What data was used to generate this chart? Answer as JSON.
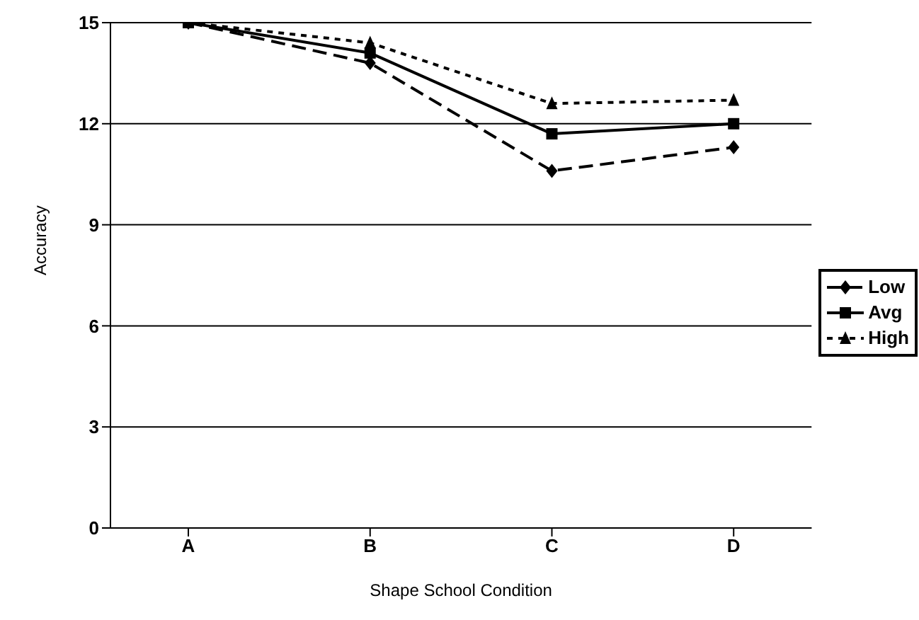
{
  "chart_data": {
    "type": "line",
    "xlabel": "Shape School Condition",
    "ylabel": "Accuracy",
    "categories": [
      "A",
      "B",
      "C",
      "D"
    ],
    "series": [
      {
        "name": "Low",
        "color": "#000000",
        "values": [
          15,
          13.8,
          10.6,
          11.3
        ],
        "marker": "diamond",
        "line_style": "dashed"
      },
      {
        "name": "Avg",
        "color": "#000000",
        "values": [
          15,
          14.1,
          11.7,
          12.0
        ],
        "marker": "square",
        "line_style": "solid"
      },
      {
        "name": "High",
        "color": "#000000",
        "values": [
          15,
          14.4,
          12.6,
          12.7
        ],
        "marker": "triangle",
        "line_style": "dotted"
      }
    ],
    "ylim": [
      0,
      15
    ],
    "yticks": [
      0,
      3,
      6,
      9,
      12,
      15
    ],
    "grid": "y",
    "legend": "right"
  }
}
